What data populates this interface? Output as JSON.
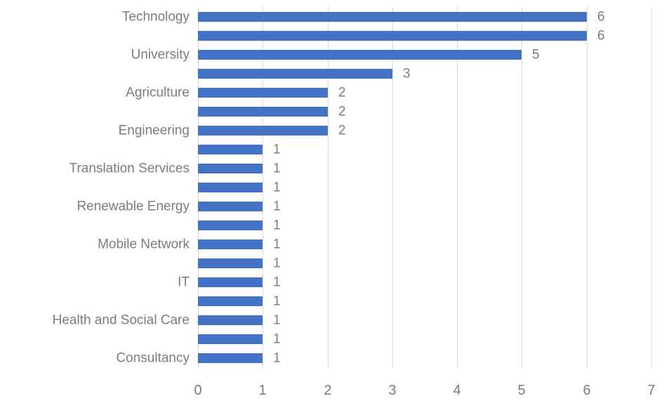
{
  "chart_data": {
    "type": "bar",
    "orientation": "horizontal",
    "title": "",
    "xlabel": "",
    "ylabel": "",
    "xlim": [
      0,
      7
    ],
    "x_ticks": [
      "0",
      "1",
      "2",
      "3",
      "4",
      "5",
      "6",
      "7"
    ],
    "grid": true,
    "legend": false,
    "data_labels_visible": true,
    "colors": {
      "bar": "#4472C4",
      "gridline": "#D9D9D9",
      "text": "#7C7C7C",
      "background": "#FFFFFF"
    },
    "bars": [
      {
        "label": "Technology",
        "value": 6
      },
      {
        "label": "",
        "value": 6
      },
      {
        "label": "University",
        "value": 5
      },
      {
        "label": "",
        "value": 3
      },
      {
        "label": "Agriculture",
        "value": 2
      },
      {
        "label": "",
        "value": 2
      },
      {
        "label": "Engineering",
        "value": 2
      },
      {
        "label": "",
        "value": 1
      },
      {
        "label": "Translation Services",
        "value": 1
      },
      {
        "label": "",
        "value": 1
      },
      {
        "label": "Renewable Energy",
        "value": 1
      },
      {
        "label": "",
        "value": 1
      },
      {
        "label": "Mobile Network",
        "value": 1
      },
      {
        "label": "",
        "value": 1
      },
      {
        "label": "IT",
        "value": 1
      },
      {
        "label": "",
        "value": 1
      },
      {
        "label": "Health and Social Care",
        "value": 1
      },
      {
        "label": "",
        "value": 1
      },
      {
        "label": "Consultancy",
        "value": 1
      }
    ]
  }
}
